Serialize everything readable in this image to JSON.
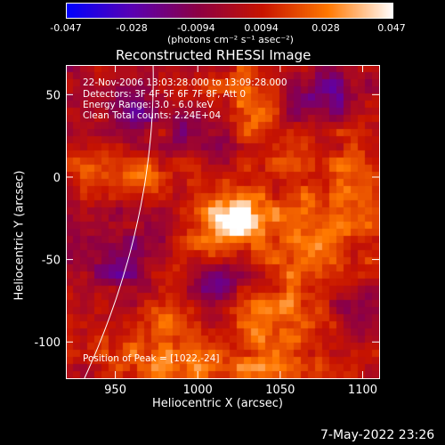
{
  "chart_data": {
    "type": "heatmap",
    "title": "Reconstructed RHESSI Image",
    "xlabel": "Heliocentric X (arcsec)",
    "ylabel": "Heliocentric Y (arcsec)",
    "xlim": [
      920,
      1110
    ],
    "ylim": [
      -122,
      68
    ],
    "xticks": [
      "950",
      "1000",
      "1050",
      "1100"
    ],
    "yticks": [
      "50",
      "0",
      "-50",
      "-100"
    ],
    "xtick_values": [
      950,
      1000,
      1050,
      1100
    ],
    "ytick_values": [
      50,
      0,
      -50,
      -100
    ],
    "colorbar": {
      "min": -0.047,
      "max": 0.047,
      "tick_labels": [
        "-0.047",
        "-0.028",
        "-0.0094",
        "0.0094",
        "0.028",
        "0.047"
      ],
      "tick_values": [
        -0.047,
        -0.028,
        -0.0094,
        0.0094,
        0.028,
        0.047
      ],
      "unit_label": "(photons cm⁻² s⁻¹ asec⁻²)",
      "colors": [
        "#0000ff",
        "#5a00b4",
        "#8c0046",
        "#c81400",
        "#ff7800",
        "#ffffff"
      ]
    },
    "annotations": [
      "22-Nov-2006 13:03:28.000 to 13:09:28.000",
      "Detectors: 3F 4F 5F 6F 7F 8F, Att 0",
      "Energy Range: 3.0 - 6.0 keV",
      "Clean    Total counts: 2.24E+04"
    ],
    "peak_label": "Position of Peak = [1022,-24]",
    "peak": {
      "x": 1022,
      "y": -24,
      "value": 0.047
    },
    "blobs": [
      {
        "x": 1022,
        "y": -24,
        "value": 0.047,
        "sx": 14,
        "sy": 10
      },
      {
        "x": 1000,
        "y": -45,
        "value": 0.022,
        "sx": 22,
        "sy": 14
      },
      {
        "x": 1065,
        "y": -35,
        "value": 0.022,
        "sx": 16,
        "sy": 28
      },
      {
        "x": 1050,
        "y": -90,
        "value": 0.02,
        "sx": 30,
        "sy": 18
      },
      {
        "x": 975,
        "y": -95,
        "value": 0.02,
        "sx": 22,
        "sy": 18
      },
      {
        "x": 1030,
        "y": 45,
        "value": 0.02,
        "sx": 14,
        "sy": 25
      },
      {
        "x": 1095,
        "y": -5,
        "value": 0.018,
        "sx": 10,
        "sy": 35
      },
      {
        "x": 955,
        "y": 5,
        "value": 0.016,
        "sx": 25,
        "sy": 12
      },
      {
        "x": 1015,
        "y": -115,
        "value": 0.016,
        "sx": 40,
        "sy": 8
      },
      {
        "x": 1010,
        "y": -65,
        "value": -0.03,
        "sx": 13,
        "sy": 14
      },
      {
        "x": 960,
        "y": -50,
        "value": -0.025,
        "sx": 18,
        "sy": 20
      },
      {
        "x": 960,
        "y": 45,
        "value": -0.022,
        "sx": 14,
        "sy": 14
      },
      {
        "x": 1005,
        "y": 25,
        "value": -0.02,
        "sx": 15,
        "sy": 12
      },
      {
        "x": 1080,
        "y": 50,
        "value": -0.02,
        "sx": 22,
        "sy": 14
      },
      {
        "x": 1090,
        "y": -80,
        "value": -0.018,
        "sx": 15,
        "sy": 15
      }
    ]
  },
  "footer": {
    "date": "7-May-2022 23:26"
  }
}
